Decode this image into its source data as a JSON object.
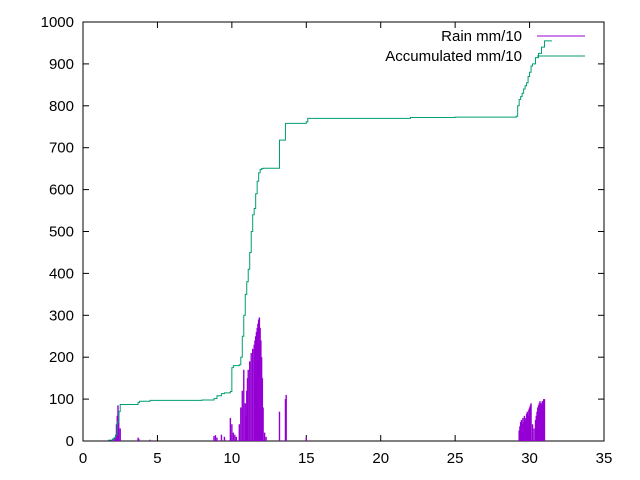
{
  "chart_data": {
    "type": "line",
    "title": "",
    "xlabel": "",
    "ylabel": "",
    "xlim": [
      0,
      35
    ],
    "ylim": [
      0,
      1000
    ],
    "xticks": [
      0,
      5,
      10,
      15,
      20,
      25,
      30,
      35
    ],
    "yticks": [
      0,
      100,
      200,
      300,
      400,
      500,
      600,
      700,
      800,
      900,
      1000
    ],
    "grid": false,
    "legend": "top-right",
    "series": [
      {
        "name": "Rain mm/10",
        "style": "impulses",
        "color": "#9400d3",
        "x": [
          1.7,
          2.0,
          2.1,
          2.2,
          2.25,
          2.3,
          2.35,
          2.4,
          2.5,
          3.7,
          3.75,
          4.5,
          8.8,
          8.9,
          9.0,
          9.3,
          9.5,
          9.9,
          10.0,
          10.1,
          10.2,
          10.3,
          10.5,
          10.6,
          10.7,
          10.8,
          10.9,
          10.95,
          11.0,
          11.05,
          11.1,
          11.2,
          11.3,
          11.4,
          11.5,
          11.55,
          11.6,
          11.65,
          11.7,
          11.75,
          11.8,
          11.85,
          11.9,
          11.95,
          12.0,
          12.05,
          12.1,
          12.2,
          12.3,
          13.2,
          13.6,
          13.65,
          15.0,
          29.3,
          29.35,
          29.4,
          29.45,
          29.5,
          29.55,
          29.6,
          29.65,
          29.7,
          29.75,
          29.8,
          29.85,
          29.9,
          29.95,
          30.0,
          30.05,
          30.1,
          30.2,
          30.3,
          30.4,
          30.45,
          30.5,
          30.55,
          30.6,
          30.65,
          30.7,
          30.75,
          30.8,
          30.85,
          30.9,
          30.95,
          31.0
        ],
        "y": [
          2,
          5,
          8,
          15,
          40,
          60,
          85,
          70,
          30,
          8,
          5,
          3,
          12,
          14,
          8,
          15,
          10,
          55,
          40,
          20,
          15,
          10,
          40,
          80,
          120,
          170,
          90,
          60,
          120,
          150,
          170,
          190,
          210,
          220,
          230,
          240,
          250,
          260,
          270,
          280,
          290,
          295,
          270,
          240,
          200,
          150,
          80,
          20,
          10,
          70,
          100,
          110,
          8,
          25,
          35,
          45,
          50,
          40,
          55,
          45,
          60,
          50,
          55,
          65,
          70,
          60,
          75,
          80,
          85,
          90,
          40,
          30,
          50,
          60,
          70,
          80,
          85,
          90,
          95,
          90,
          85,
          95,
          95,
          100,
          100
        ]
      },
      {
        "name": "Accumulated mm/10",
        "style": "steps",
        "color": "#009e73",
        "x": [
          1.7,
          2.0,
          2.1,
          2.2,
          2.3,
          2.4,
          2.5,
          3.7,
          3.8,
          4.5,
          5.0,
          6.0,
          7.0,
          8.0,
          8.8,
          9.0,
          9.3,
          9.5,
          9.9,
          10.0,
          10.1,
          10.5,
          10.6,
          10.7,
          10.8,
          10.9,
          11.0,
          11.1,
          11.2,
          11.3,
          11.4,
          11.5,
          11.6,
          11.7,
          11.8,
          11.9,
          12.0,
          12.1,
          12.3,
          13.2,
          13.6,
          15.0,
          15.1,
          20.0,
          22.0,
          25.0,
          27.0,
          29.1,
          29.2,
          29.3,
          29.4,
          29.5,
          29.6,
          29.7,
          29.8,
          29.9,
          30.0,
          30.1,
          30.2,
          30.4,
          30.6,
          30.8,
          31.0,
          31.5
        ],
        "y": [
          2,
          5,
          8,
          15,
          45,
          70,
          87,
          92,
          95,
          97,
          97,
          97,
          97,
          98,
          101,
          108,
          113,
          115,
          118,
          175,
          180,
          182,
          200,
          250,
          300,
          350,
          380,
          410,
          450,
          500,
          540,
          555,
          590,
          620,
          640,
          648,
          650,
          651,
          651,
          718,
          758,
          762,
          770,
          770,
          772,
          773,
          773,
          775,
          800,
          815,
          822,
          830,
          840,
          848,
          855,
          870,
          880,
          895,
          900,
          915,
          925,
          940,
          955,
          955
        ]
      }
    ]
  }
}
